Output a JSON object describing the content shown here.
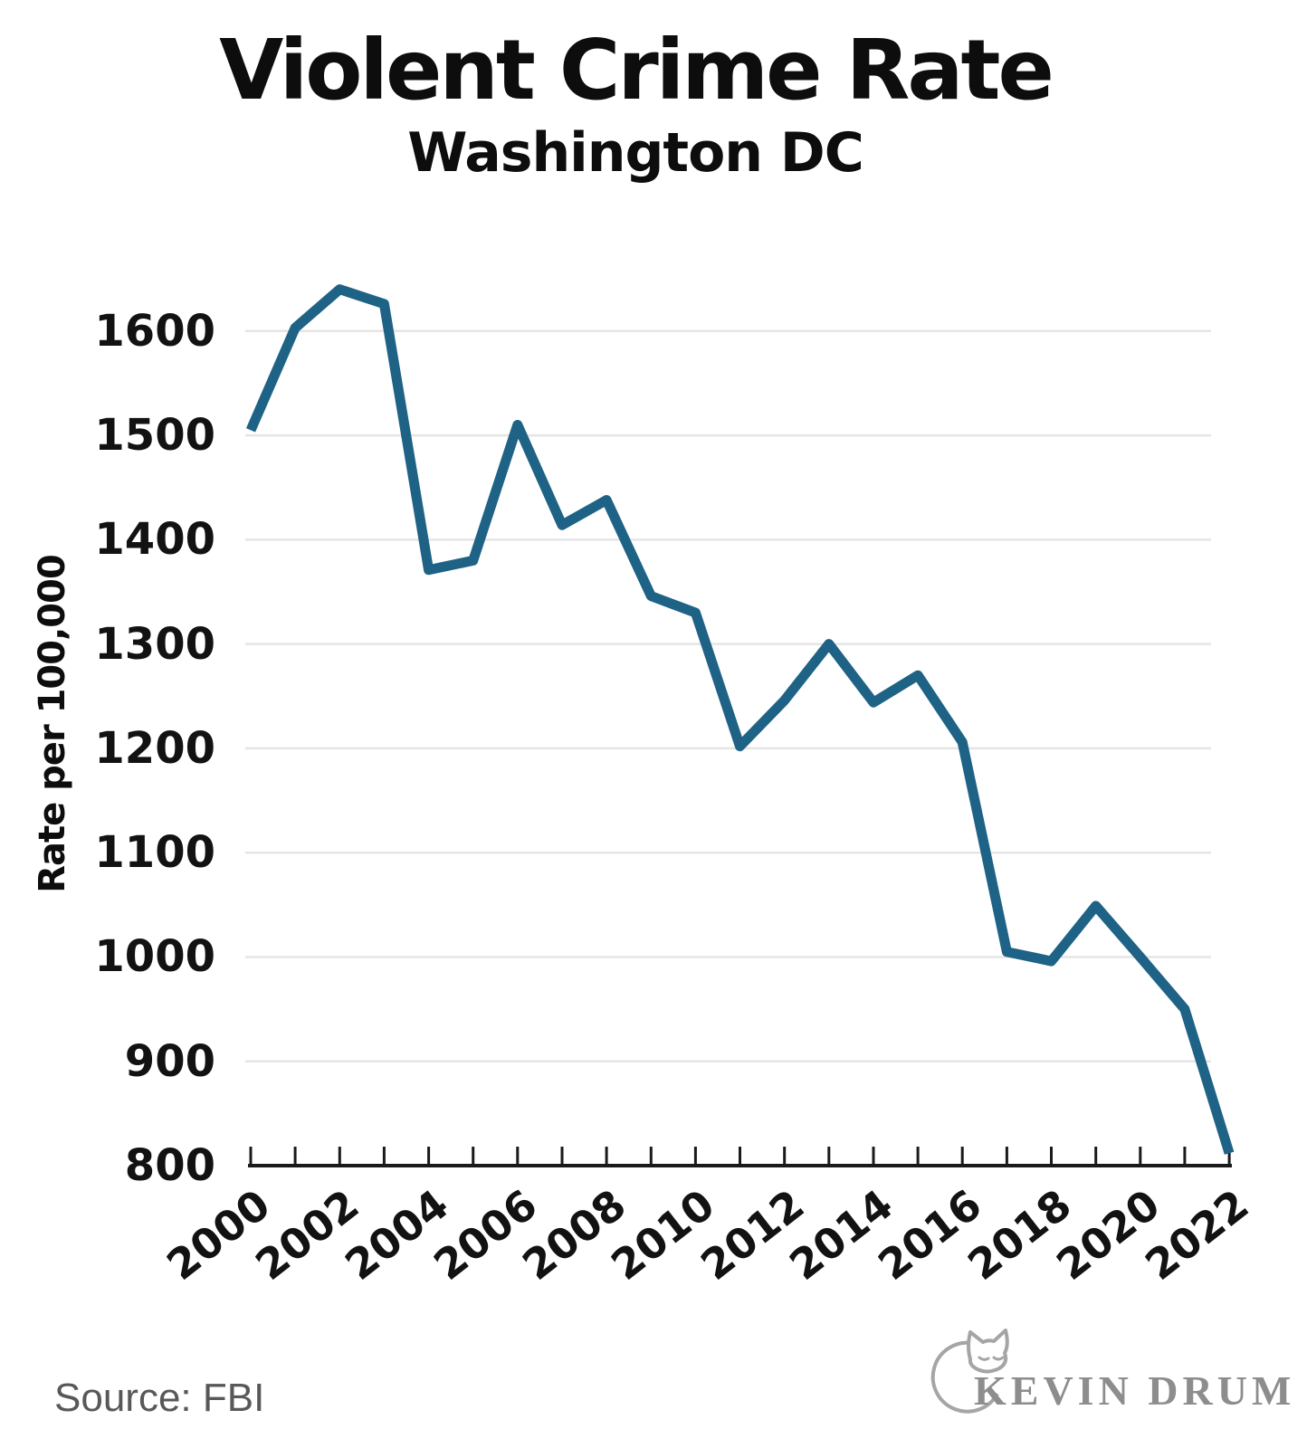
{
  "chart_data": {
    "type": "line",
    "title": "Violent Crime Rate",
    "subtitle": "Washington DC",
    "ylabel": "Rate per 100,000",
    "series_name": "Violent crime rate per 100,000",
    "x": [
      2000,
      2001,
      2002,
      2003,
      2004,
      2005,
      2006,
      2007,
      2008,
      2009,
      2010,
      2011,
      2012,
      2013,
      2014,
      2015,
      2016,
      2017,
      2018,
      2019,
      2020,
      2021,
      2022
    ],
    "values": [
      1505,
      1603,
      1640,
      1626,
      1371,
      1380,
      1510,
      1414,
      1438,
      1346,
      1330,
      1202,
      1246,
      1300,
      1244,
      1270,
      1206,
      1005,
      996,
      1049,
      1000,
      950,
      812
    ],
    "ylim": [
      800,
      1650
    ],
    "yticks": [
      800,
      900,
      1000,
      1100,
      1200,
      1300,
      1400,
      1500,
      1600
    ],
    "xticks": [
      2000,
      2002,
      2004,
      2006,
      2008,
      2010,
      2012,
      2014,
      2016,
      2018,
      2020,
      2022
    ],
    "grid": "horizontal",
    "legend": "none",
    "line_color": "#1e6286",
    "gridline_color": "#e5e5e5",
    "axis_color": "#1a1a1a"
  },
  "footer": {
    "source_label": "Source: FBI",
    "credit": "KEVIN DRUM",
    "credit_logo": "cat-logo"
  }
}
